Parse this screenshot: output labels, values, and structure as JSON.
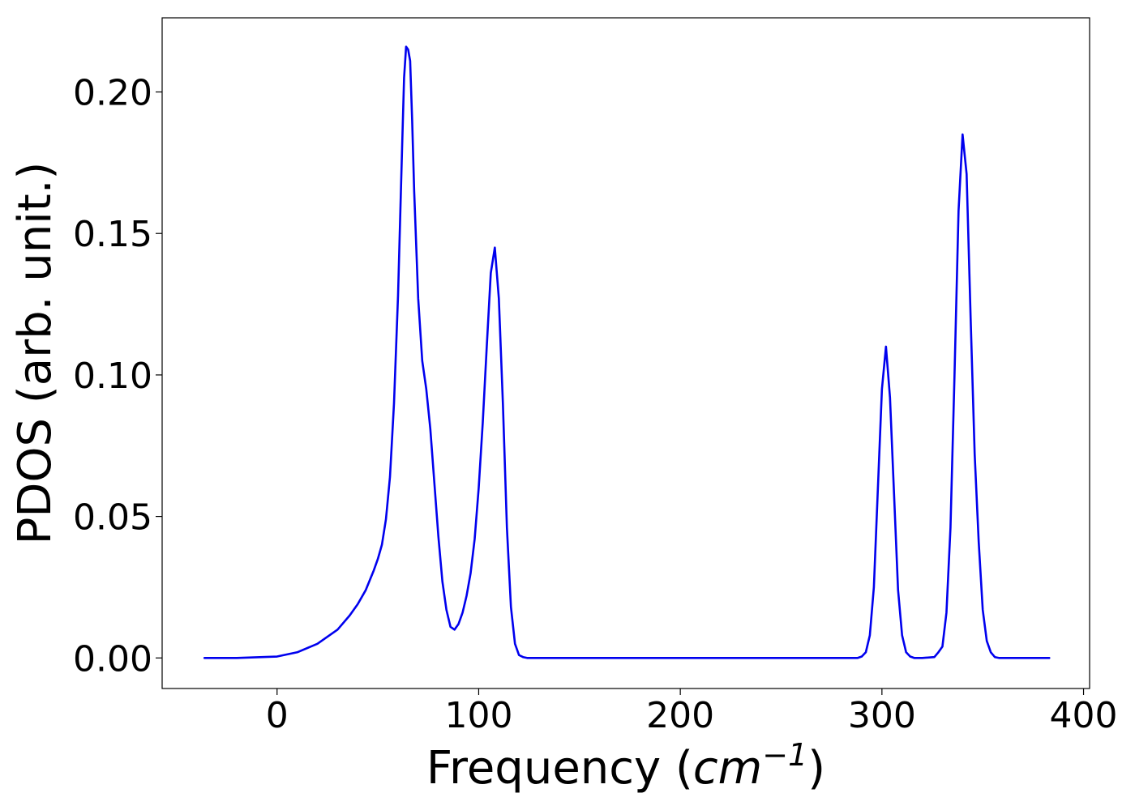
{
  "chart_data": {
    "type": "line",
    "title": "",
    "xlabel": "Frequency",
    "xlabel_unit_open": "(",
    "xlabel_unit": "cm",
    "xlabel_unit_exp": "−1",
    "xlabel_unit_close": ")",
    "ylabel": "PDOS (arb. unit.)",
    "xlim": [
      -57,
      403
    ],
    "ylim": [
      -0.0108,
      0.2262
    ],
    "xticks": [
      0,
      100,
      200,
      300,
      400
    ],
    "xtick_labels": [
      "0",
      "100",
      "200",
      "300",
      "400"
    ],
    "yticks": [
      0.0,
      0.05,
      0.1,
      0.15,
      0.2
    ],
    "ytick_labels": [
      "0.00",
      "0.05",
      "0.10",
      "0.15",
      "0.20"
    ],
    "grid": false,
    "series": [
      {
        "color": "#0000ee",
        "x": [
          -36,
          -20,
          0,
          10,
          20,
          30,
          36,
          40,
          44,
          48,
          50,
          52,
          54,
          56,
          58,
          60,
          62,
          63,
          64,
          65,
          66,
          67,
          68,
          70,
          72,
          74,
          76,
          78,
          80,
          82,
          84,
          86,
          88,
          90,
          92,
          94,
          96,
          98,
          100,
          102,
          104,
          106,
          108,
          110,
          112,
          114,
          116,
          118,
          120,
          122,
          124,
          126,
          130,
          140,
          200,
          250,
          288,
          290,
          292,
          294,
          296,
          298,
          300,
          302,
          304,
          306,
          308,
          310,
          312,
          314,
          316,
          320,
          326,
          328,
          330,
          332,
          334,
          336,
          338,
          340,
          342,
          344,
          346,
          348,
          350,
          352,
          354,
          356,
          358,
          360,
          364,
          383
        ],
        "y": [
          0.0,
          0.0,
          0.0005,
          0.002,
          0.005,
          0.01,
          0.015,
          0.019,
          0.024,
          0.031,
          0.035,
          0.04,
          0.049,
          0.064,
          0.09,
          0.128,
          0.18,
          0.205,
          0.216,
          0.215,
          0.211,
          0.19,
          0.165,
          0.127,
          0.105,
          0.095,
          0.081,
          0.062,
          0.043,
          0.027,
          0.017,
          0.011,
          0.01,
          0.012,
          0.016,
          0.022,
          0.03,
          0.042,
          0.06,
          0.083,
          0.11,
          0.136,
          0.145,
          0.127,
          0.09,
          0.046,
          0.018,
          0.005,
          0.001,
          0.0003,
          0.0,
          0.0,
          0.0,
          0.0,
          0.0,
          0.0,
          0.0,
          0.0005,
          0.002,
          0.008,
          0.025,
          0.06,
          0.095,
          0.11,
          0.092,
          0.058,
          0.024,
          0.008,
          0.002,
          0.0005,
          0.0,
          0.0,
          0.0003,
          0.002,
          0.004,
          0.016,
          0.046,
          0.1,
          0.158,
          0.185,
          0.171,
          0.12,
          0.072,
          0.041,
          0.017,
          0.006,
          0.002,
          0.0003,
          0.0,
          0.0,
          0.0,
          0.0
        ]
      }
    ]
  }
}
